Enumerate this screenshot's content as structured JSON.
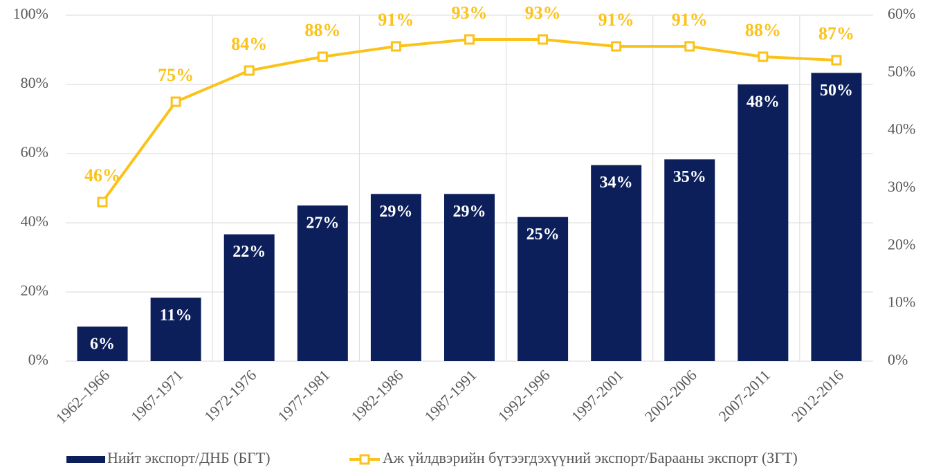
{
  "chart_data": {
    "type": "combo",
    "categories": [
      "1962–1966",
      "1967-1971",
      "1972-1976",
      "1977-1981",
      "1982-1986",
      "1987-1991",
      "1992-1996",
      "1997-2001",
      "2002-2006",
      "2007-2011",
      "2012-2016"
    ],
    "series": [
      {
        "name": "Нийт экспорт/ДНБ (БГТ)",
        "type": "bar",
        "axis": "y2",
        "color": "#0c1f5b",
        "values": [
          6,
          11,
          22,
          27,
          29,
          29,
          25,
          34,
          35,
          48,
          50
        ],
        "value_labels": [
          "6%",
          "11%",
          "22%",
          "27%",
          "29%",
          "29%",
          "25%",
          "34%",
          "35%",
          "48%",
          "50%"
        ]
      },
      {
        "name": "Аж үйлдвэрийн бүтээгдэхүүний экспорт/Барааны экспорт (ЗГТ)",
        "type": "line",
        "axis": "y",
        "color": "#fbc21a",
        "values": [
          46,
          75,
          84,
          88,
          91,
          93,
          93,
          91,
          91,
          88,
          87
        ],
        "value_labels": [
          "46%",
          "75%",
          "84%",
          "88%",
          "91%",
          "93%",
          "93%",
          "91%",
          "91%",
          "88%",
          "87%"
        ]
      }
    ],
    "ylim": [
      0,
      100
    ],
    "yticks": [
      {
        "value": 0,
        "label": "0%"
      },
      {
        "value": 20,
        "label": "20%"
      },
      {
        "value": 40,
        "label": "40%"
      },
      {
        "value": 60,
        "label": "60%"
      },
      {
        "value": 80,
        "label": "80%"
      },
      {
        "value": 100,
        "label": "100%"
      }
    ],
    "y2lim": [
      0,
      60
    ],
    "y2ticks": [
      {
        "value": 0,
        "label": "0%"
      },
      {
        "value": 10,
        "label": "10%"
      },
      {
        "value": 20,
        "label": "20%"
      },
      {
        "value": 30,
        "label": "30%"
      },
      {
        "value": 40,
        "label": "40%"
      },
      {
        "value": 50,
        "label": "50%"
      },
      {
        "value": 60,
        "label": "60%"
      }
    ],
    "grid": true,
    "legend": "bottom"
  }
}
